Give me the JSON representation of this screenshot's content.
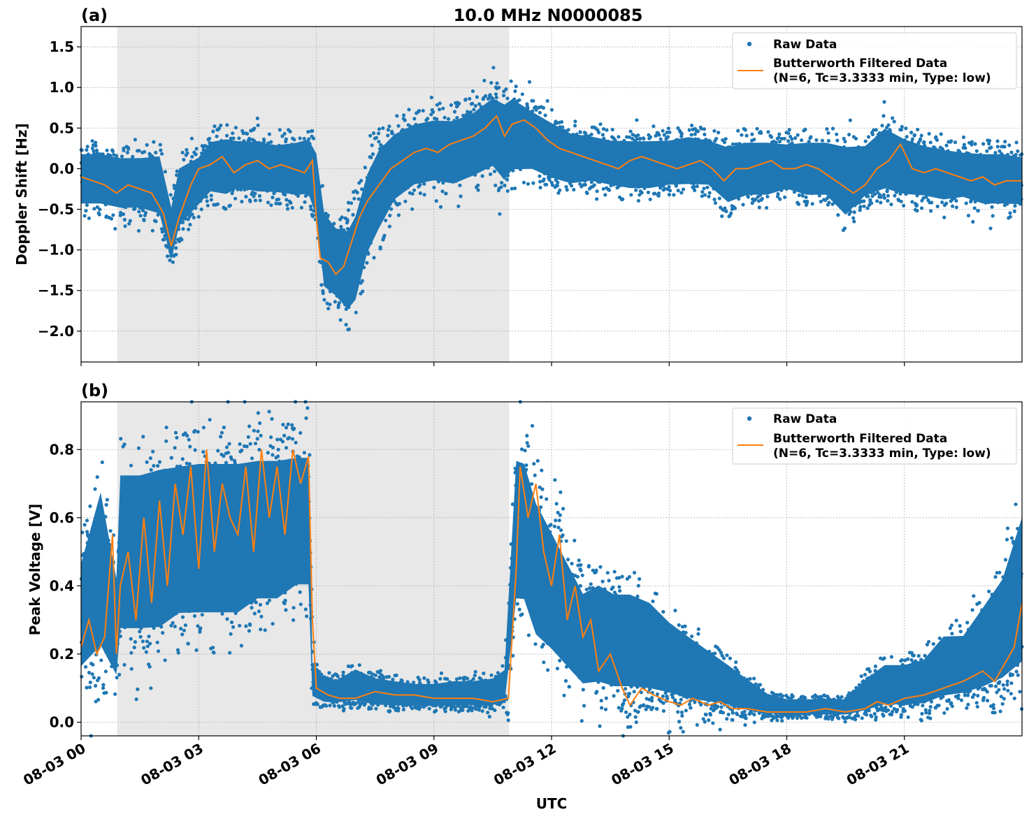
{
  "figure": {
    "title": "10.0 MHz N0000085",
    "xlabel": "UTC"
  },
  "colors": {
    "raw": "#1f77b4",
    "filtered": "#ff7f0e",
    "shade": "#e8e8e8",
    "grid": "#b0b0b0"
  },
  "chart_data": [
    {
      "type": "scatter",
      "panel_label": "(a)",
      "title": "10.0 MHz N0000085",
      "ylabel": "Doppler Shift [Hz]",
      "xlabel": "",
      "xlim": [
        0,
        24
      ],
      "ylim": [
        -2.38,
        1.75
      ],
      "yticks": [
        -2.0,
        -1.5,
        -1.0,
        -0.5,
        0.0,
        0.5,
        1.0,
        1.5
      ],
      "ytick_labels": [
        "−2.0",
        "−1.5",
        "−1.0",
        "−0.5",
        "0.0",
        "0.5",
        "1.0",
        "1.5"
      ],
      "xticks": [
        0,
        3,
        6,
        9,
        12,
        15,
        18,
        21
      ],
      "shaded_region": [
        0.92,
        10.92
      ],
      "grid": true,
      "legend_position": "top-right",
      "legend": [
        "Raw Data",
        "Butterworth Filtered Data",
        "(N=6, Tc=3.3333 min, Type: low)"
      ],
      "series": [
        {
          "name": "Raw Data",
          "kind": "scatter-band",
          "x": [
            0,
            0.5,
            1,
            1.5,
            2,
            2.3,
            2.5,
            3,
            3.3,
            3.7,
            4,
            4.5,
            5,
            5.5,
            5.8,
            6,
            6.2,
            6.5,
            6.8,
            7,
            7.3,
            7.6,
            8,
            8.5,
            9,
            9.5,
            10,
            10.5,
            10.8,
            11,
            11.5,
            12,
            12.5,
            13,
            13.5,
            14,
            14.5,
            15,
            15.5,
            16,
            16.5,
            17,
            17.5,
            18,
            18.5,
            19,
            19.5,
            20,
            20.5,
            21,
            21.5,
            22,
            22.5,
            23,
            23.5,
            24
          ],
          "low": [
            -0.6,
            -0.6,
            -0.65,
            -0.65,
            -0.75,
            -1.3,
            -0.9,
            -0.6,
            -0.45,
            -0.5,
            -0.4,
            -0.45,
            -0.45,
            -0.5,
            -0.5,
            -0.8,
            -1.7,
            -1.8,
            -2.0,
            -1.9,
            -1.3,
            -1.0,
            -0.6,
            -0.4,
            -0.35,
            -0.4,
            -0.3,
            -0.2,
            -0.4,
            -0.25,
            -0.2,
            -0.3,
            -0.35,
            -0.3,
            -0.35,
            -0.4,
            -0.4,
            -0.35,
            -0.35,
            -0.35,
            -0.6,
            -0.5,
            -0.5,
            -0.4,
            -0.5,
            -0.5,
            -0.8,
            -0.5,
            -0.45,
            -0.5,
            -0.5,
            -0.55,
            -0.5,
            -0.6,
            -0.6,
            -0.6
          ],
          "high": [
            0.35,
            0.35,
            0.3,
            0.3,
            0.35,
            -0.3,
            0.2,
            0.3,
            0.5,
            0.55,
            0.5,
            0.5,
            0.45,
            0.5,
            0.55,
            0.4,
            -0.3,
            -0.5,
            -0.5,
            -0.3,
            0.2,
            0.5,
            0.65,
            0.75,
            0.8,
            0.8,
            0.9,
            1.1,
            1.05,
            1.1,
            0.9,
            0.75,
            0.6,
            0.55,
            0.5,
            0.5,
            0.5,
            0.5,
            0.55,
            0.5,
            0.45,
            0.5,
            0.5,
            0.45,
            0.5,
            0.5,
            0.5,
            0.45,
            0.7,
            0.55,
            0.45,
            0.4,
            0.35,
            0.35,
            0.35,
            0.3
          ]
        },
        {
          "name": "Butterworth Filtered Data",
          "kind": "line",
          "x": [
            0,
            0.3,
            0.6,
            0.9,
            1.2,
            1.5,
            1.8,
            2.1,
            2.3,
            2.5,
            2.8,
            3.0,
            3.3,
            3.6,
            3.9,
            4.2,
            4.5,
            4.8,
            5.1,
            5.4,
            5.7,
            5.9,
            6.0,
            6.1,
            6.3,
            6.5,
            6.7,
            6.9,
            7.1,
            7.3,
            7.6,
            7.9,
            8.2,
            8.5,
            8.8,
            9.1,
            9.4,
            9.7,
            10.0,
            10.3,
            10.6,
            10.8,
            11.0,
            11.3,
            11.6,
            11.9,
            12.2,
            12.5,
            12.8,
            13.1,
            13.4,
            13.7,
            14.0,
            14.3,
            14.6,
            14.9,
            15.2,
            15.5,
            15.8,
            16.1,
            16.4,
            16.7,
            17.0,
            17.3,
            17.6,
            17.9,
            18.2,
            18.5,
            18.8,
            19.1,
            19.4,
            19.7,
            20.0,
            20.3,
            20.6,
            20.9,
            21.2,
            21.5,
            21.8,
            22.1,
            22.4,
            22.7,
            23.0,
            23.3,
            23.6,
            24.0
          ],
          "y": [
            -0.1,
            -0.15,
            -0.2,
            -0.3,
            -0.2,
            -0.25,
            -0.3,
            -0.55,
            -0.95,
            -0.6,
            -0.2,
            0.0,
            0.05,
            0.15,
            -0.05,
            0.05,
            0.1,
            0.0,
            0.05,
            0.0,
            -0.05,
            0.1,
            -0.6,
            -1.1,
            -1.15,
            -1.3,
            -1.2,
            -0.9,
            -0.6,
            -0.4,
            -0.2,
            0.0,
            0.1,
            0.2,
            0.25,
            0.2,
            0.3,
            0.35,
            0.4,
            0.5,
            0.65,
            0.4,
            0.55,
            0.6,
            0.5,
            0.35,
            0.25,
            0.2,
            0.15,
            0.1,
            0.05,
            0.0,
            0.1,
            0.15,
            0.1,
            0.05,
            0.0,
            0.05,
            0.1,
            0.0,
            -0.15,
            0.0,
            0.0,
            0.05,
            0.1,
            0.0,
            0.0,
            0.05,
            0.0,
            -0.1,
            -0.2,
            -0.3,
            -0.2,
            0.0,
            0.1,
            0.3,
            0.0,
            -0.05,
            0.0,
            -0.05,
            -0.1,
            -0.15,
            -0.1,
            -0.2,
            -0.15,
            -0.15
          ]
        }
      ]
    },
    {
      "type": "scatter",
      "panel_label": "(b)",
      "title": "",
      "ylabel": "Peak Voltage [V]",
      "xlabel": "UTC",
      "xlim": [
        0,
        24
      ],
      "ylim": [
        -0.04,
        0.94
      ],
      "yticks": [
        0.0,
        0.2,
        0.4,
        0.6,
        0.8
      ],
      "ytick_labels": [
        "0.0",
        "0.2",
        "0.4",
        "0.6",
        "0.8"
      ],
      "xticks": [
        0,
        3,
        6,
        9,
        12,
        15,
        18,
        21
      ],
      "xtick_labels": [
        "08-03 00",
        "08-03 03",
        "08-03 06",
        "08-03 09",
        "08-03 12",
        "08-03 15",
        "08-03 18",
        "08-03 21"
      ],
      "shaded_region": [
        0.92,
        10.92
      ],
      "grid": true,
      "legend_position": "top-right",
      "legend": [
        "Raw Data",
        "Butterworth Filtered Data",
        "(N=6, Tc=3.3333 min, Type: low)"
      ],
      "series": [
        {
          "name": "Raw Data",
          "kind": "scatter-band",
          "x": [
            0,
            0.5,
            0.9,
            1.0,
            1.5,
            2.0,
            2.5,
            3.0,
            3.5,
            4.0,
            4.5,
            5.0,
            5.5,
            5.8,
            5.9,
            6.2,
            6.5,
            7.0,
            7.5,
            8.0,
            8.5,
            9.0,
            9.5,
            10.0,
            10.5,
            10.8,
            11.1,
            11.3,
            11.6,
            12.0,
            12.4,
            12.8,
            13.2,
            13.6,
            14.0,
            14.5,
            15.0,
            15.5,
            16.0,
            16.5,
            17.0,
            17.5,
            18.0,
            18.5,
            19.0,
            19.5,
            20.0,
            20.5,
            21.0,
            21.5,
            22.0,
            22.5,
            23.0,
            23.5,
            24.0
          ],
          "low": [
            0.08,
            0.1,
            0.06,
            0.15,
            0.15,
            0.15,
            0.2,
            0.2,
            0.2,
            0.2,
            0.25,
            0.25,
            0.3,
            0.3,
            0.05,
            0.04,
            0.04,
            0.04,
            0.03,
            0.03,
            0.03,
            0.03,
            0.03,
            0.03,
            0.03,
            0.03,
            0.25,
            0.25,
            0.15,
            0.12,
            0.08,
            0.04,
            0.04,
            0.03,
            0.03,
            0.03,
            0.03,
            0.02,
            0.02,
            0.02,
            0.01,
            0.01,
            0.01,
            0.01,
            0.01,
            0.01,
            0.01,
            0.02,
            0.02,
            0.02,
            0.03,
            0.04,
            0.04,
            0.05,
            0.06
          ],
          "high": [
            0.55,
            0.8,
            0.5,
            0.85,
            0.85,
            0.87,
            0.87,
            0.88,
            0.88,
            0.88,
            0.88,
            0.88,
            0.88,
            0.88,
            0.2,
            0.15,
            0.14,
            0.18,
            0.15,
            0.14,
            0.13,
            0.13,
            0.14,
            0.14,
            0.15,
            0.18,
            0.88,
            0.87,
            0.75,
            0.65,
            0.55,
            0.45,
            0.48,
            0.45,
            0.45,
            0.42,
            0.35,
            0.3,
            0.25,
            0.2,
            0.15,
            0.1,
            0.08,
            0.08,
            0.08,
            0.08,
            0.15,
            0.2,
            0.2,
            0.22,
            0.3,
            0.3,
            0.4,
            0.5,
            0.72
          ]
        },
        {
          "name": "Butterworth Filtered Data",
          "kind": "line",
          "x": [
            0,
            0.2,
            0.4,
            0.6,
            0.8,
            0.9,
            1.0,
            1.2,
            1.4,
            1.6,
            1.8,
            2.0,
            2.2,
            2.4,
            2.6,
            2.8,
            3.0,
            3.2,
            3.4,
            3.6,
            3.8,
            4.0,
            4.2,
            4.4,
            4.6,
            4.8,
            5.0,
            5.2,
            5.4,
            5.6,
            5.8,
            5.9,
            6.0,
            6.3,
            6.6,
            7.0,
            7.5,
            8.0,
            8.5,
            9.0,
            9.5,
            10.0,
            10.5,
            10.9,
            11.1,
            11.2,
            11.4,
            11.6,
            11.8,
            12.0,
            12.2,
            12.4,
            12.6,
            12.8,
            13.0,
            13.2,
            13.5,
            13.8,
            14.0,
            14.3,
            14.6,
            15.0,
            15.3,
            15.6,
            16.0,
            16.3,
            16.6,
            17.0,
            17.5,
            18.0,
            18.5,
            19.0,
            19.5,
            20.0,
            20.3,
            20.6,
            21.0,
            21.5,
            22.0,
            22.5,
            23.0,
            23.3,
            23.6,
            23.8,
            24.0
          ],
          "y": [
            0.22,
            0.3,
            0.2,
            0.25,
            0.55,
            0.2,
            0.4,
            0.5,
            0.3,
            0.6,
            0.35,
            0.65,
            0.4,
            0.7,
            0.55,
            0.75,
            0.45,
            0.8,
            0.5,
            0.7,
            0.6,
            0.55,
            0.75,
            0.5,
            0.8,
            0.6,
            0.75,
            0.55,
            0.8,
            0.7,
            0.78,
            0.3,
            0.1,
            0.08,
            0.07,
            0.07,
            0.09,
            0.08,
            0.08,
            0.07,
            0.07,
            0.07,
            0.06,
            0.07,
            0.45,
            0.75,
            0.6,
            0.7,
            0.5,
            0.4,
            0.55,
            0.3,
            0.4,
            0.25,
            0.3,
            0.15,
            0.2,
            0.1,
            0.05,
            0.1,
            0.08,
            0.06,
            0.05,
            0.07,
            0.05,
            0.06,
            0.04,
            0.04,
            0.03,
            0.03,
            0.03,
            0.04,
            0.03,
            0.04,
            0.06,
            0.05,
            0.07,
            0.08,
            0.1,
            0.12,
            0.15,
            0.12,
            0.18,
            0.22,
            0.35
          ]
        }
      ]
    }
  ]
}
